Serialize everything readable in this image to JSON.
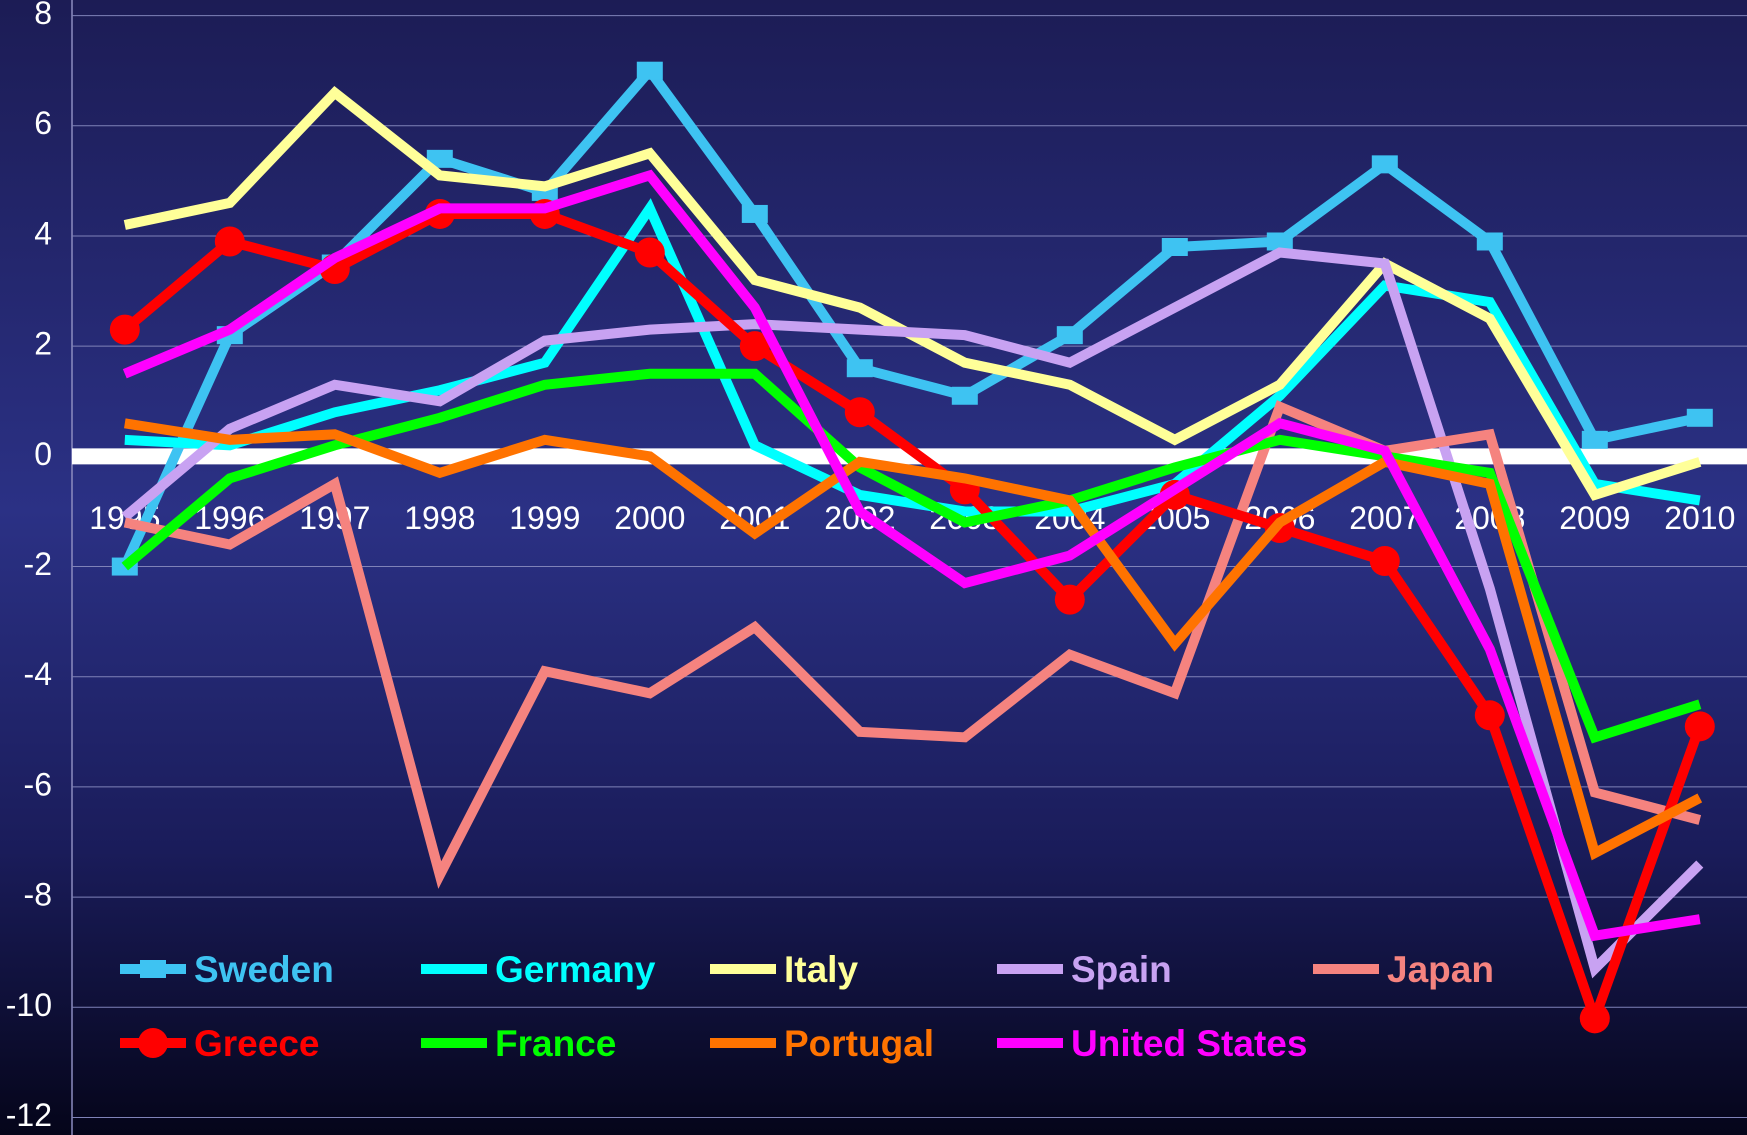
{
  "chart_data": {
    "type": "line",
    "categories": [
      "1995",
      "1996",
      "1997",
      "1998",
      "1999",
      "2000",
      "2001",
      "2002",
      "2003",
      "2004",
      "2005",
      "2006",
      "2007",
      "2008",
      "2009",
      "2010"
    ],
    "ylim": [
      -12,
      8
    ],
    "yticks": [
      -12,
      -10,
      -8,
      -6,
      -4,
      -2,
      0,
      2,
      4,
      6,
      8
    ],
    "grid": true,
    "series": [
      {
        "name": "Sweden",
        "color": "#3ec3f2",
        "marker": "square",
        "values": [
          -2.0,
          2.2,
          3.5,
          5.4,
          4.8,
          7.0,
          4.4,
          1.6,
          1.1,
          2.2,
          3.8,
          3.9,
          5.3,
          3.9,
          0.3,
          0.7
        ]
      },
      {
        "name": "Germany",
        "color": "#00ffff",
        "values": [
          0.3,
          0.2,
          0.8,
          1.2,
          1.7,
          4.5,
          0.2,
          -0.7,
          -1.0,
          -1.0,
          -0.5,
          1.1,
          3.1,
          2.8,
          -0.5,
          -0.8
        ]
      },
      {
        "name": "Italy",
        "color": "#ffff99",
        "values": [
          4.2,
          4.6,
          6.6,
          5.1,
          4.9,
          5.5,
          3.2,
          2.7,
          1.7,
          1.3,
          0.3,
          1.3,
          3.5,
          2.5,
          -0.7,
          -0.1
        ]
      },
      {
        "name": "Spain",
        "color": "#c8a2f2",
        "values": [
          -1.1,
          0.5,
          1.3,
          1.0,
          2.1,
          2.3,
          2.4,
          2.3,
          2.2,
          1.7,
          2.7,
          3.7,
          3.5,
          -2.4,
          -9.3,
          -7.4
        ]
      },
      {
        "name": "Japan",
        "color": "#f5837f",
        "values": [
          -1.2,
          -1.6,
          -0.5,
          -7.6,
          -3.9,
          -4.3,
          -3.1,
          -5.0,
          -5.1,
          -3.6,
          -4.3,
          0.9,
          0.1,
          0.4,
          -6.1,
          -6.6
        ]
      },
      {
        "name": "Greece",
        "color": "#ff0000",
        "marker": "circle",
        "values": [
          2.3,
          3.9,
          3.4,
          4.4,
          4.4,
          3.7,
          2.0,
          0.8,
          -0.6,
          -2.6,
          -0.7,
          -1.3,
          -1.9,
          -4.7,
          -10.2,
          -4.9
        ]
      },
      {
        "name": "France",
        "color": "#00ff00",
        "values": [
          -2.0,
          -0.4,
          0.2,
          0.7,
          1.3,
          1.5,
          1.5,
          -0.2,
          -1.2,
          -0.8,
          -0.2,
          0.3,
          0.0,
          -0.3,
          -5.1,
          -4.5
        ]
      },
      {
        "name": "Portugal",
        "color": "#ff7300",
        "values": [
          0.6,
          0.3,
          0.4,
          -0.3,
          0.3,
          0.0,
          -1.4,
          -0.1,
          -0.4,
          -0.8,
          -3.4,
          -1.2,
          -0.1,
          -0.5,
          -7.2,
          -6.2
        ]
      },
      {
        "name": "United States",
        "color": "#ff00ff",
        "values": [
          1.5,
          2.3,
          3.6,
          4.5,
          4.5,
          5.1,
          2.7,
          -1.0,
          -2.3,
          -1.8,
          -0.6,
          0.6,
          0.1,
          -3.5,
          -8.7,
          -8.4
        ]
      }
    ]
  }
}
